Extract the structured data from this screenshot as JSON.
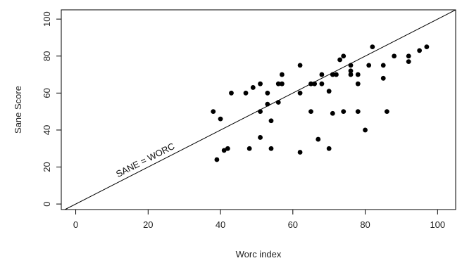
{
  "chart_data": {
    "type": "scatter",
    "title": "",
    "xlabel": "Worc index",
    "ylabel": "Sane Score",
    "xlim": [
      -4,
      105
    ],
    "ylim": [
      -3,
      105
    ],
    "x_ticks": [
      0,
      20,
      40,
      60,
      80,
      100
    ],
    "y_ticks": [
      0,
      20,
      40,
      60,
      80,
      100
    ],
    "grid": false,
    "legend": "none",
    "reference_line": {
      "label": "SANE = WORC",
      "slope": 1,
      "intercept": 0
    },
    "marker_color": "#000000",
    "series": [
      {
        "points": [
          [
            38,
            50
          ],
          [
            39,
            24
          ],
          [
            40,
            46
          ],
          [
            41,
            29
          ],
          [
            42,
            30
          ],
          [
            43,
            60
          ],
          [
            47,
            60
          ],
          [
            48,
            30
          ],
          [
            49,
            63
          ],
          [
            51,
            50
          ],
          [
            51,
            65
          ],
          [
            51,
            36
          ],
          [
            53,
            60
          ],
          [
            53,
            54
          ],
          [
            54,
            45
          ],
          [
            54,
            30
          ],
          [
            56,
            55
          ],
          [
            56,
            65
          ],
          [
            57,
            65
          ],
          [
            57,
            70
          ],
          [
            62,
            75
          ],
          [
            62,
            60
          ],
          [
            62,
            28
          ],
          [
            65,
            65
          ],
          [
            65,
            50
          ],
          [
            66,
            65
          ],
          [
            67,
            35
          ],
          [
            68,
            70
          ],
          [
            68,
            65
          ],
          [
            70,
            61
          ],
          [
            70,
            30
          ],
          [
            71,
            49
          ],
          [
            71,
            70
          ],
          [
            72,
            70
          ],
          [
            73,
            78
          ],
          [
            74,
            80
          ],
          [
            74,
            50
          ],
          [
            76,
            75
          ],
          [
            76,
            72
          ],
          [
            76,
            70
          ],
          [
            78,
            70
          ],
          [
            78,
            65
          ],
          [
            78,
            50
          ],
          [
            80,
            40
          ],
          [
            81,
            75
          ],
          [
            82,
            85
          ],
          [
            85,
            75
          ],
          [
            85,
            68
          ],
          [
            86,
            50
          ],
          [
            88,
            80
          ],
          [
            92,
            80
          ],
          [
            92,
            77
          ],
          [
            95,
            83
          ],
          [
            97,
            85
          ]
        ]
      }
    ]
  }
}
